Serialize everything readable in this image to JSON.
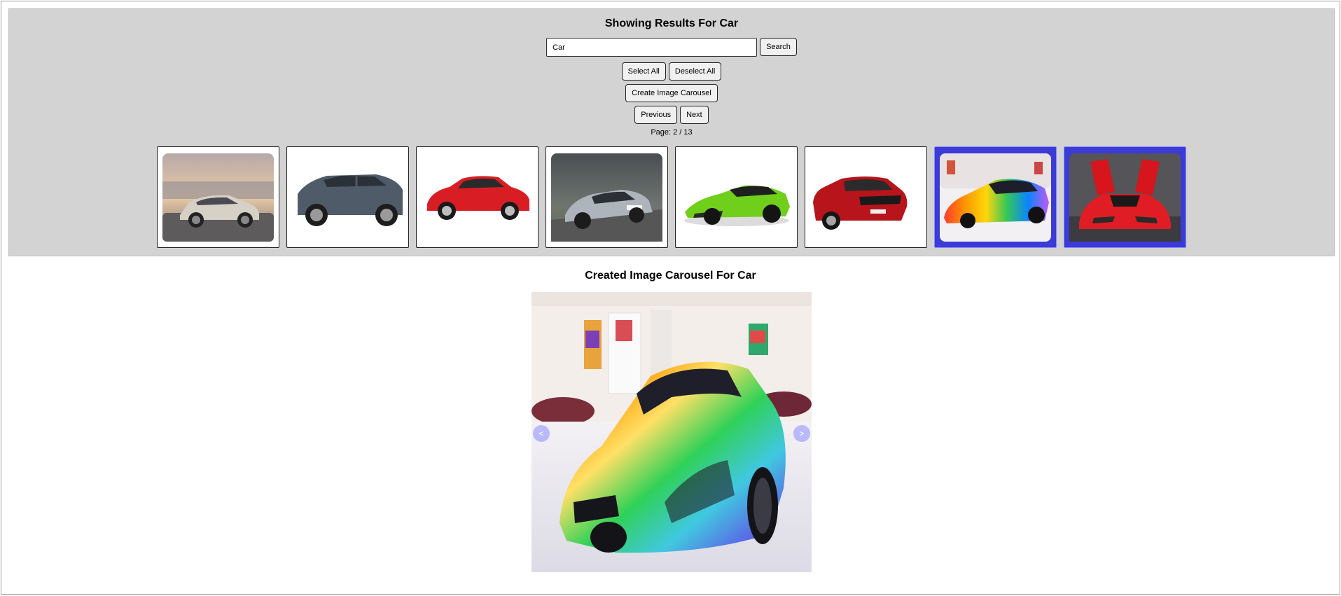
{
  "header": {
    "title": "Showing Results For Car"
  },
  "search": {
    "value": "Car",
    "button_label": "Search"
  },
  "selection": {
    "select_all_label": "Select All",
    "deselect_all_label": "Deselect All"
  },
  "create_carousel_label": "Create Image Carousel",
  "pagination": {
    "previous_label": "Previous",
    "next_label": "Next",
    "page_text": "Page: 2 / 13"
  },
  "results": [
    {
      "name": "silver-suv-city-image",
      "selected": false
    },
    {
      "name": "grey-suv-image",
      "selected": false
    },
    {
      "name": "red-hatchback-image",
      "selected": false
    },
    {
      "name": "silver-sedan-road-image",
      "selected": false
    },
    {
      "name": "green-sports-car-image",
      "selected": false
    },
    {
      "name": "red-sedan-image",
      "selected": false
    },
    {
      "name": "rainbow-supercar-image",
      "selected": true
    },
    {
      "name": "red-supercar-doors-up-image",
      "selected": true
    }
  ],
  "carousel": {
    "title": "Created Image Carousel For Car",
    "prev_label": "<",
    "next_label": ">",
    "current_image": "rainbow-supercar-showroom-image"
  },
  "colors": {
    "panel": "#d3d3d3",
    "selected": "#3b3bd6",
    "arrow": "#8c8cff"
  }
}
